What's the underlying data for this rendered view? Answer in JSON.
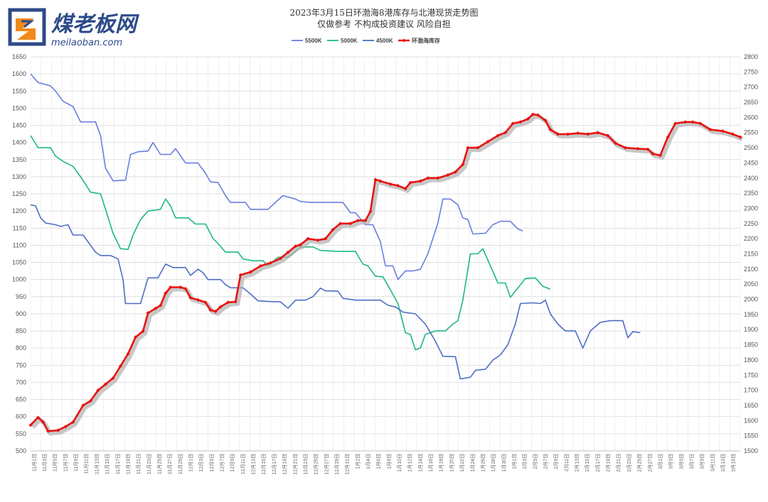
{
  "logo": {
    "name_cn": "煤老板网",
    "url_text": "meilaoban.com"
  },
  "chart_data": {
    "type": "line",
    "title": "2023年3月15日环渤海8港库存与北港现货走势图",
    "subtitle": "仅做参考 不构成投资建议 风险自担",
    "x_start": "11月1日",
    "x_end": "3月15日",
    "x_tick_labels": [
      "11月1日",
      "11月3日",
      "11月5日",
      "11月7日",
      "11月9日",
      "11月11日",
      "11月13日",
      "11月15日",
      "11月17日",
      "11月19日",
      "11月21日",
      "11月23日",
      "11月25日",
      "11月27日",
      "11月29日",
      "12月1日",
      "12月3日",
      "12月5日",
      "12月7日",
      "12月9日",
      "12月11日",
      "12月13日",
      "12月15日",
      "12月17日",
      "12月19日",
      "12月21日",
      "12月23日",
      "12月25日",
      "12月27日",
      "12月29日",
      "12月31日",
      "1月2日",
      "1月4日",
      "1月6日",
      "1月8日",
      "1月10日",
      "1月12日",
      "1月14日",
      "1月16日",
      "1月18日",
      "1月20日",
      "1月22日",
      "1月24日",
      "1月26日",
      "1月28日",
      "1月30日",
      "2月1日",
      "2月3日",
      "2月5日",
      "2月7日",
      "2月9日",
      "2月11日",
      "2月13日",
      "2月15日",
      "2月17日",
      "2月19日",
      "2月21日",
      "2月23日",
      "2月25日",
      "2月27日",
      "3月1日",
      "3月3日",
      "3月5日",
      "3月7日",
      "3月9日",
      "3月11日",
      "3月13日",
      "3月15日"
    ],
    "y_left": {
      "min": 500,
      "max": 1650,
      "step": 50
    },
    "y_right": {
      "min": 1500,
      "max": 2800,
      "step": 50
    },
    "grid": true,
    "legend_position": "top-center",
    "series": [
      {
        "name": "5500K",
        "axis": "left",
        "color": "#6a7ee0",
        "points": [
          [
            0,
            1600
          ],
          [
            3,
            1575
          ],
          [
            8,
            1565
          ],
          [
            10,
            1550
          ],
          [
            13,
            1520
          ],
          [
            17,
            1505
          ],
          [
            20,
            1460
          ],
          [
            26,
            1460
          ],
          [
            28,
            1420
          ],
          [
            30,
            1325
          ],
          [
            33,
            1288
          ],
          [
            38,
            1290
          ],
          [
            40,
            1365
          ],
          [
            43,
            1373
          ],
          [
            47,
            1375
          ],
          [
            49,
            1400
          ],
          [
            52,
            1365
          ],
          [
            56,
            1365
          ],
          [
            58,
            1382
          ],
          [
            62,
            1340
          ],
          [
            67,
            1340
          ],
          [
            70,
            1310
          ],
          [
            72,
            1285
          ],
          [
            75,
            1283
          ],
          [
            78,
            1245
          ],
          [
            80,
            1225
          ],
          [
            86,
            1225
          ],
          [
            88,
            1205
          ],
          [
            95,
            1205
          ],
          [
            98,
            1225
          ],
          [
            101,
            1245
          ],
          [
            106,
            1235
          ],
          [
            108,
            1228
          ],
          [
            112,
            1225
          ],
          [
            125,
            1225
          ],
          [
            128,
            1195
          ],
          [
            130,
            1195
          ],
          [
            134,
            1160
          ],
          [
            137,
            1160
          ],
          [
            140,
            1110
          ],
          [
            142,
            1040
          ],
          [
            145,
            1040
          ],
          [
            147,
            1000
          ],
          [
            150,
            1025
          ],
          [
            153,
            1025
          ],
          [
            156,
            1030
          ],
          [
            159,
            1075
          ],
          [
            163,
            1165
          ],
          [
            165,
            1235
          ],
          [
            168,
            1235
          ],
          [
            171,
            1218
          ],
          [
            173,
            1180
          ],
          [
            175,
            1175
          ],
          [
            177,
            1133
          ],
          [
            182,
            1135
          ],
          [
            185,
            1160
          ],
          [
            188,
            1170
          ],
          [
            192,
            1170
          ],
          [
            195,
            1148
          ],
          [
            197,
            1142
          ]
        ]
      },
      {
        "name": "5000K",
        "axis": "left",
        "color": "#1db97e",
        "points": [
          [
            0,
            1420
          ],
          [
            3,
            1385
          ],
          [
            8,
            1385
          ],
          [
            10,
            1360
          ],
          [
            13,
            1345
          ],
          [
            17,
            1330
          ],
          [
            20,
            1300
          ],
          [
            24,
            1255
          ],
          [
            28,
            1250
          ],
          [
            30,
            1205
          ],
          [
            33,
            1135
          ],
          [
            36,
            1090
          ],
          [
            39,
            1088
          ],
          [
            41,
            1130
          ],
          [
            44,
            1175
          ],
          [
            47,
            1200
          ],
          [
            52,
            1205
          ],
          [
            54,
            1235
          ],
          [
            56,
            1215
          ],
          [
            58,
            1180
          ],
          [
            63,
            1180
          ],
          [
            66,
            1162
          ],
          [
            70,
            1162
          ],
          [
            73,
            1120
          ],
          [
            75,
            1105
          ],
          [
            78,
            1080
          ],
          [
            83,
            1080
          ],
          [
            85,
            1060
          ],
          [
            89,
            1055
          ],
          [
            93,
            1055
          ],
          [
            95,
            1040
          ],
          [
            99,
            1065
          ],
          [
            103,
            1065
          ],
          [
            106,
            1082
          ],
          [
            108,
            1095
          ],
          [
            113,
            1095
          ],
          [
            116,
            1085
          ],
          [
            123,
            1082
          ],
          [
            130,
            1082
          ],
          [
            133,
            1045
          ],
          [
            135,
            1040
          ],
          [
            138,
            1010
          ],
          [
            141,
            1008
          ],
          [
            144,
            970
          ],
          [
            147,
            930
          ],
          [
            150,
            845
          ],
          [
            152,
            840
          ],
          [
            154,
            795
          ],
          [
            156,
            800
          ],
          [
            158,
            840
          ],
          [
            160,
            845
          ],
          [
            162,
            850
          ],
          [
            166,
            850
          ],
          [
            169,
            870
          ],
          [
            171,
            880
          ],
          [
            173,
            940
          ],
          [
            176,
            1075
          ],
          [
            179,
            1075
          ],
          [
            181,
            1090
          ],
          [
            184,
            1040
          ],
          [
            187,
            990
          ],
          [
            190,
            990
          ],
          [
            192,
            948
          ],
          [
            195,
            975
          ],
          [
            198,
            1003
          ],
          [
            202,
            1005
          ],
          [
            205,
            980
          ],
          [
            208,
            972
          ]
        ]
      },
      {
        "name": "4500K",
        "axis": "left",
        "color": "#4e6ec4",
        "points": [
          [
            0,
            1218
          ],
          [
            2,
            1215
          ],
          [
            4,
            1180
          ],
          [
            6,
            1165
          ],
          [
            10,
            1160
          ],
          [
            12,
            1155
          ],
          [
            15,
            1160
          ],
          [
            17,
            1130
          ],
          [
            21,
            1130
          ],
          [
            23,
            1110
          ],
          [
            26,
            1080
          ],
          [
            28,
            1070
          ],
          [
            32,
            1070
          ],
          [
            35,
            1060
          ],
          [
            37,
            1000
          ],
          [
            38,
            930
          ],
          [
            44,
            930
          ],
          [
            47,
            1005
          ],
          [
            51,
            1005
          ],
          [
            54,
            1045
          ],
          [
            57,
            1035
          ],
          [
            62,
            1035
          ],
          [
            64,
            1012
          ],
          [
            67,
            1030
          ],
          [
            69,
            1020
          ],
          [
            71,
            1000
          ],
          [
            76,
            1000
          ],
          [
            78,
            985
          ],
          [
            80,
            976
          ],
          [
            85,
            976
          ],
          [
            88,
            958
          ],
          [
            91,
            938
          ],
          [
            95,
            936
          ],
          [
            100,
            935
          ],
          [
            103,
            916
          ],
          [
            106,
            940
          ],
          [
            110,
            940
          ],
          [
            113,
            950
          ],
          [
            116,
            975
          ],
          [
            118,
            967
          ],
          [
            123,
            966
          ],
          [
            125,
            945
          ],
          [
            130,
            940
          ],
          [
            140,
            940
          ],
          [
            143,
            925
          ],
          [
            146,
            920
          ],
          [
            149,
            905
          ],
          [
            154,
            900
          ],
          [
            158,
            870
          ],
          [
            162,
            820
          ],
          [
            165,
            776
          ],
          [
            170,
            775
          ],
          [
            172,
            710
          ],
          [
            176,
            715
          ],
          [
            178,
            735
          ],
          [
            182,
            738
          ],
          [
            185,
            765
          ],
          [
            188,
            780
          ],
          [
            191,
            810
          ],
          [
            194,
            870
          ],
          [
            196,
            930
          ],
          [
            201,
            932
          ],
          [
            204,
            930
          ],
          [
            206,
            940
          ],
          [
            208,
            900
          ],
          [
            211,
            870
          ],
          [
            214,
            850
          ],
          [
            218,
            850
          ],
          [
            221,
            800
          ],
          [
            224,
            850
          ],
          [
            228,
            875
          ],
          [
            232,
            880
          ],
          [
            237,
            880
          ],
          [
            239,
            830
          ],
          [
            241,
            848
          ],
          [
            244,
            845
          ]
        ]
      },
      {
        "name": "环渤海库存",
        "axis": "right",
        "color": "#e8130f",
        "marker": "diamond",
        "points": [
          [
            0,
            1585
          ],
          [
            3,
            1610
          ],
          [
            5,
            1595
          ],
          [
            7,
            1565
          ],
          [
            11,
            1568
          ],
          [
            14,
            1580
          ],
          [
            17,
            1595
          ],
          [
            21,
            1650
          ],
          [
            24,
            1665
          ],
          [
            27,
            1700
          ],
          [
            30,
            1720
          ],
          [
            33,
            1740
          ],
          [
            36,
            1780
          ],
          [
            39,
            1820
          ],
          [
            42,
            1875
          ],
          [
            45,
            1895
          ],
          [
            47,
            1955
          ],
          [
            50,
            1970
          ],
          [
            52,
            1980
          ],
          [
            54,
            2020
          ],
          [
            56,
            2040
          ],
          [
            60,
            2040
          ],
          [
            62,
            2035
          ],
          [
            64,
            2005
          ],
          [
            67,
            1998
          ],
          [
            70,
            1990
          ],
          [
            72,
            1965
          ],
          [
            74,
            1960
          ],
          [
            76,
            1975
          ],
          [
            79,
            1990
          ],
          [
            82,
            1992
          ],
          [
            84,
            2080
          ],
          [
            88,
            2090
          ],
          [
            92,
            2110
          ],
          [
            96,
            2120
          ],
          [
            100,
            2135
          ],
          [
            103,
            2155
          ],
          [
            106,
            2175
          ],
          [
            108,
            2180
          ],
          [
            111,
            2200
          ],
          [
            115,
            2195
          ],
          [
            118,
            2200
          ],
          [
            121,
            2230
          ],
          [
            124,
            2250
          ],
          [
            128,
            2250
          ],
          [
            131,
            2260
          ],
          [
            134,
            2260
          ],
          [
            136,
            2290
          ],
          [
            138,
            2395
          ],
          [
            140,
            2390
          ],
          [
            144,
            2380
          ],
          [
            147,
            2375
          ],
          [
            150,
            2365
          ],
          [
            152,
            2385
          ],
          [
            156,
            2390
          ],
          [
            159,
            2400
          ],
          [
            163,
            2400
          ],
          [
            167,
            2410
          ],
          [
            170,
            2420
          ],
          [
            173,
            2445
          ],
          [
            175,
            2500
          ],
          [
            179,
            2500
          ],
          [
            183,
            2520
          ],
          [
            187,
            2540
          ],
          [
            190,
            2550
          ],
          [
            193,
            2580
          ],
          [
            196,
            2585
          ],
          [
            199,
            2595
          ],
          [
            201,
            2610
          ],
          [
            203,
            2608
          ],
          [
            206,
            2590
          ],
          [
            208,
            2560
          ],
          [
            211,
            2545
          ],
          [
            215,
            2545
          ],
          [
            219,
            2548
          ],
          [
            223,
            2545
          ],
          [
            227,
            2550
          ],
          [
            231,
            2540
          ],
          [
            234,
            2515
          ],
          [
            238,
            2500
          ],
          [
            243,
            2497
          ],
          [
            247,
            2495
          ],
          [
            249,
            2480
          ],
          [
            252,
            2475
          ],
          [
            255,
            2535
          ],
          [
            258,
            2580
          ],
          [
            262,
            2585
          ],
          [
            265,
            2585
          ],
          [
            268,
            2580
          ],
          [
            272,
            2560
          ],
          [
            277,
            2555
          ],
          [
            281,
            2545
          ],
          [
            284,
            2535
          ]
        ]
      }
    ]
  }
}
